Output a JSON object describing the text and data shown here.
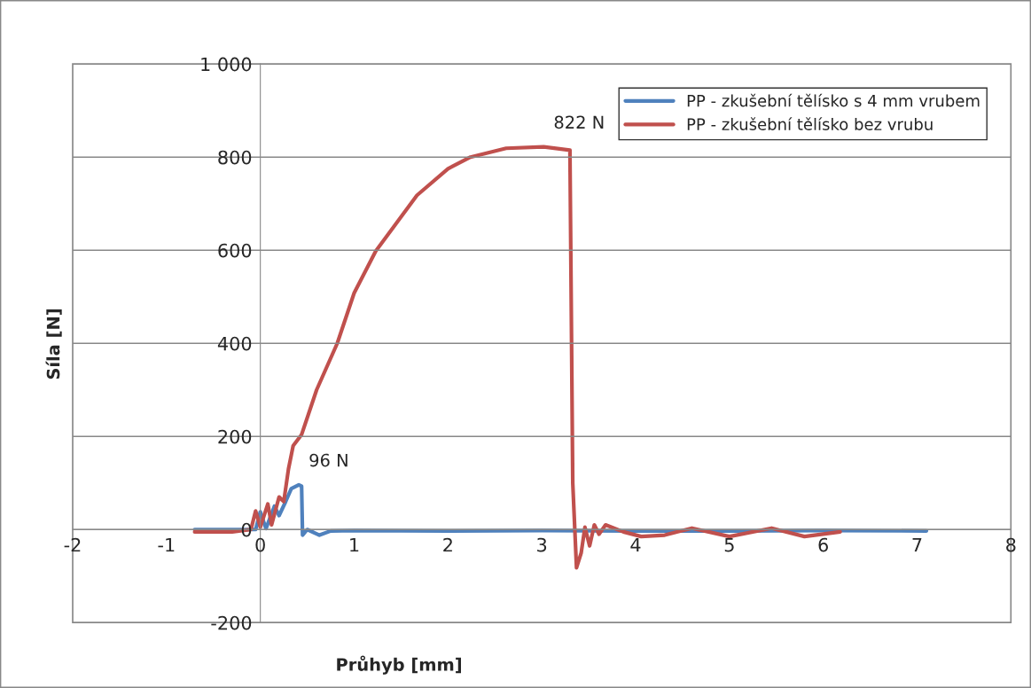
{
  "chart_data": {
    "type": "line",
    "xlabel": "Průhyb [mm]",
    "ylabel": "Síla [N]",
    "xlim": [
      -2,
      8
    ],
    "xticks": [
      {
        "value": -2,
        "label": "-2"
      },
      {
        "value": -1,
        "label": "-1"
      },
      0,
      1,
      2,
      3,
      4,
      5,
      6,
      7,
      8
    ],
    "ylim": [
      -200,
      1000
    ],
    "yticks": [
      {
        "value": -200,
        "label": "-200"
      },
      0,
      200,
      400,
      600,
      800,
      {
        "value": 1000,
        "label": "1 000"
      }
    ],
    "grid": "y",
    "legend": "top right",
    "line_style": "solid",
    "marker": "none",
    "series": [
      {
        "name": "PP - zkušební tělísko s 4 mm vrubem",
        "color": "#4f81bd",
        "x": [
          -0.7,
          -0.3,
          -0.05,
          0.0,
          0.06,
          0.15,
          0.2,
          0.27,
          0.33,
          0.41,
          0.44,
          0.45,
          0.5,
          0.63,
          0.75,
          1.0,
          2.0,
          3.0,
          4.0,
          5.0,
          6.0,
          7.1
        ],
        "values": [
          0,
          0,
          0,
          38,
          2,
          50,
          30,
          60,
          88,
          96,
          93,
          -12,
          0,
          -12,
          -3,
          -2,
          -3,
          -2,
          -3,
          -3,
          -2,
          -3
        ]
      },
      {
        "name": "PP - zkušební tělísko bez vrubu",
        "color": "#c0504d",
        "x": [
          -0.7,
          -0.3,
          -0.1,
          -0.05,
          0.0,
          0.08,
          0.12,
          0.2,
          0.25,
          0.3,
          0.35,
          0.44,
          0.6,
          0.82,
          1.0,
          1.23,
          1.67,
          2.0,
          2.24,
          2.62,
          3.02,
          3.3,
          3.33,
          3.37,
          3.42,
          3.46,
          3.51,
          3.56,
          3.61,
          3.68,
          3.87,
          4.06,
          4.31,
          4.6,
          5.0,
          5.45,
          5.8,
          6.18
        ],
        "values": [
          -5,
          -5,
          0,
          40,
          5,
          55,
          10,
          70,
          60,
          130,
          180,
          204,
          300,
          400,
          508,
          598,
          718,
          775,
          800,
          819,
          822,
          815,
          100,
          -82,
          -50,
          5,
          -35,
          10,
          -10,
          10,
          -5,
          -15,
          -12,
          3,
          -15,
          3,
          -15,
          -5
        ]
      }
    ],
    "annotations": [
      {
        "text": "822 N",
        "x": 3.02,
        "y": 822
      },
      {
        "text": "96 N",
        "x": 0.41,
        "y": 96
      }
    ]
  }
}
